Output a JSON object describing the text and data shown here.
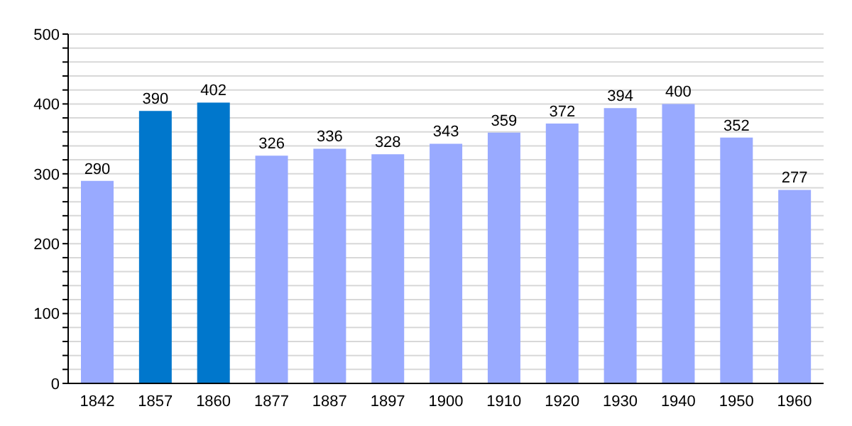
{
  "chart_data": {
    "type": "bar",
    "categories": [
      "1842",
      "1857",
      "1860",
      "1877",
      "1887",
      "1897",
      "1900",
      "1910",
      "1920",
      "1930",
      "1940",
      "1950",
      "1960"
    ],
    "values": [
      290,
      390,
      402,
      326,
      336,
      328,
      343,
      359,
      372,
      394,
      400,
      352,
      277
    ],
    "colors": [
      "#99aaff",
      "#0077cc",
      "#0077cc",
      "#99aaff",
      "#99aaff",
      "#99aaff",
      "#99aaff",
      "#99aaff",
      "#99aaff",
      "#99aaff",
      "#99aaff",
      "#99aaff",
      "#99aaff"
    ],
    "ylim": [
      0,
      500
    ],
    "yticks": [
      0,
      {
        "value": 20,
        "label": null
      },
      {
        "value": 40,
        "label": null
      },
      {
        "value": 60,
        "label": null
      },
      {
        "value": 80,
        "label": null
      },
      100,
      {
        "value": 120,
        "label": null
      },
      {
        "value": 140,
        "label": null
      },
      {
        "value": 160,
        "label": null
      },
      {
        "value": 180,
        "label": null
      },
      200,
      {
        "value": 220,
        "label": null
      },
      {
        "value": 240,
        "label": null
      },
      {
        "value": 260,
        "label": null
      },
      {
        "value": 280,
        "label": null
      },
      300,
      {
        "value": 320,
        "label": null
      },
      {
        "value": 340,
        "label": null
      },
      {
        "value": 360,
        "label": null
      },
      {
        "value": 380,
        "label": null
      },
      400,
      {
        "value": 420,
        "label": null
      },
      {
        "value": 440,
        "label": null
      },
      {
        "value": 460,
        "label": null
      },
      {
        "value": 480,
        "label": null
      },
      500
    ],
    "grid": "y",
    "data_labels": true
  }
}
